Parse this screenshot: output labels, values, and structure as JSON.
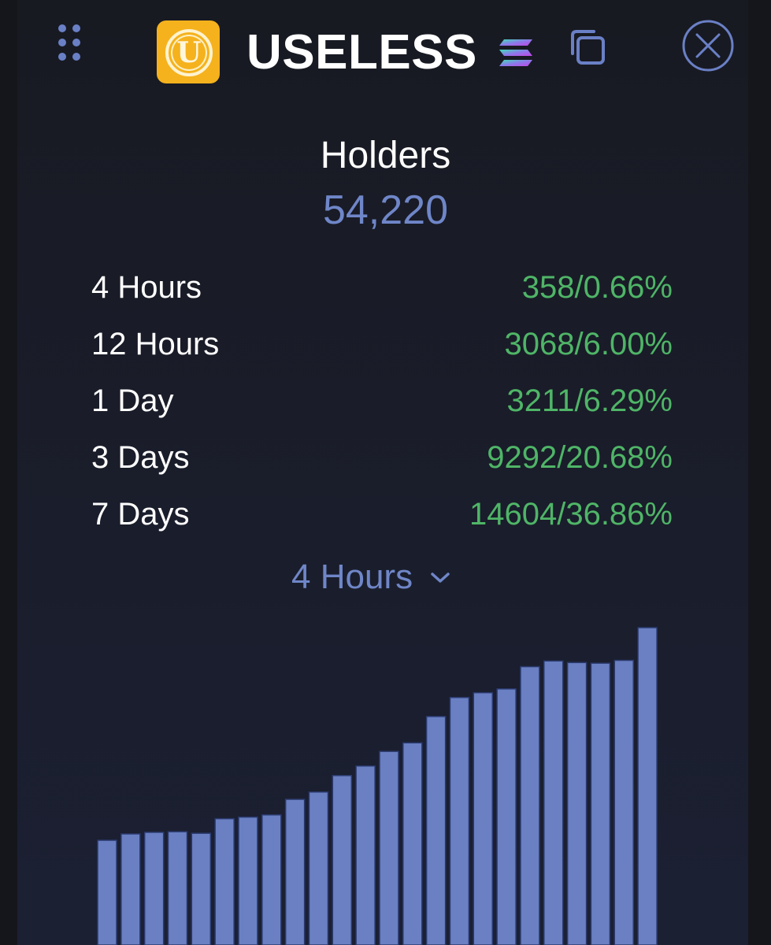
{
  "header": {
    "token_name": "USELESS",
    "logo_letter": "U",
    "icons": {
      "drag": "drag-handle-icon",
      "chain": "solana-icon",
      "copy": "copy-icon",
      "close": "close-icon"
    }
  },
  "holders": {
    "title": "Holders",
    "count": "54,220"
  },
  "stats": [
    {
      "label": "4 Hours",
      "value": "358/0.66%"
    },
    {
      "label": "12 Hours",
      "value": "3068/6.00%"
    },
    {
      "label": "1 Day",
      "value": "3211/6.29%"
    },
    {
      "label": "3 Days",
      "value": "9292/20.68%"
    },
    {
      "label": "7 Days",
      "value": "14604/36.86%"
    }
  ],
  "timeframe": {
    "selected": "4 Hours"
  },
  "colors": {
    "accent": "#6f86c8",
    "positive": "#4fb567",
    "bar": "#6a80c3",
    "logo": "#f5b21d"
  },
  "chart_data": {
    "type": "bar",
    "values": [
      0.33,
      0.35,
      0.355,
      0.357,
      0.352,
      0.398,
      0.403,
      0.41,
      0.459,
      0.482,
      0.534,
      0.564,
      0.61,
      0.637,
      0.72,
      0.78,
      0.795,
      0.807,
      0.877,
      0.895,
      0.89,
      0.888,
      0.897,
      1.0
    ],
    "ylim": [
      0,
      1
    ],
    "grid": false,
    "legend": "none"
  }
}
